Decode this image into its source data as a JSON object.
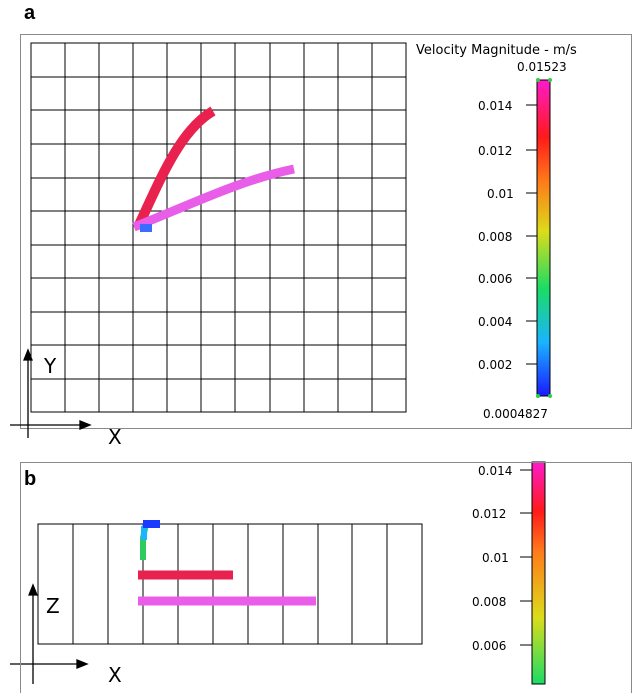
{
  "panel_a": {
    "label": "a",
    "colorbar_title": "Velocity Magnitude - m/s",
    "max_label": "0.01523",
    "min_label": "0.0004827",
    "ticks": [
      "0.014",
      "0.012",
      "0.01",
      "0.008",
      "0.006",
      "0.004",
      "0.002"
    ],
    "axis_vertical": "Y",
    "axis_horizontal": "X"
  },
  "panel_b": {
    "label": "b",
    "ticks": [
      "0.014",
      "0.012",
      "0.01",
      "0.008",
      "0.006"
    ],
    "axis_vertical": "Z",
    "axis_horizontal": "X"
  },
  "colors": {
    "trajectory_red": "#e8214e",
    "trajectory_magenta": "#e85ee8",
    "colormap": [
      "#1a1aff",
      "#1ab4ff",
      "#1adc64",
      "#dcdc1a",
      "#ff7a1a",
      "#ff1a1a",
      "#ff1acc"
    ]
  }
}
